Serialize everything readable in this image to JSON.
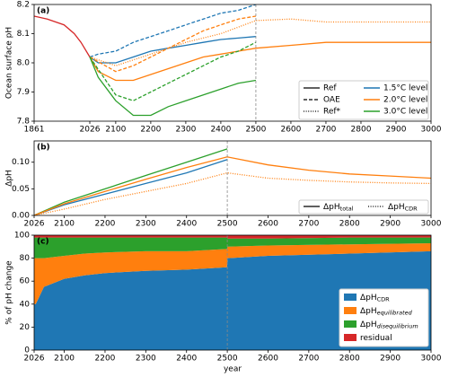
{
  "chart_data": [
    {
      "type": "line",
      "panel_label": "(a)",
      "ylabel": "Ocean surface pH",
      "xlim": [
        1861,
        3000
      ],
      "xticks": [
        1861,
        2026,
        2100,
        2200,
        2300,
        2400,
        2500,
        2600,
        2700,
        2800,
        2900,
        3000
      ],
      "ylim": [
        7.8,
        8.2
      ],
      "yticks": [
        7.8,
        7.9,
        {
          "value": 8,
          "label": "8.0"
        },
        8.1,
        8.2
      ],
      "series": [
        {
          "color": "#d62728",
          "dash": "solid",
          "x": [
            1861,
            1900,
            1950,
            1980,
            2000,
            2026
          ],
          "values": [
            8.16,
            8.15,
            8.13,
            8.1,
            8.07,
            8.02
          ]
        },
        {
          "color": "#1f77b4",
          "dash": "solid",
          "x": [
            2026,
            2050,
            2100,
            2150,
            2200,
            2250,
            2300,
            2350,
            2400,
            2450,
            2500
          ],
          "values": [
            8.02,
            8.0,
            8.0,
            8.02,
            8.04,
            8.05,
            8.06,
            8.07,
            8.08,
            8.085,
            8.09
          ]
        },
        {
          "color": "#1f77b4",
          "dash": "dashed",
          "x": [
            2026,
            2050,
            2100,
            2150,
            2200,
            2250,
            2300,
            2350,
            2400,
            2450,
            2500
          ],
          "values": [
            8.02,
            8.03,
            8.04,
            8.07,
            8.09,
            8.11,
            8.13,
            8.15,
            8.17,
            8.18,
            8.2
          ]
        },
        {
          "color": "#ff7f0e",
          "dash": "solid",
          "x": [
            2026,
            2050,
            2100,
            2150,
            2200,
            2250,
            2300,
            2350,
            2400,
            2450,
            2500,
            2600,
            2700,
            2800,
            2900,
            3000
          ],
          "values": [
            8.02,
            7.97,
            7.94,
            7.94,
            7.96,
            7.98,
            8.0,
            8.02,
            8.03,
            8.04,
            8.05,
            8.06,
            8.07,
            8.07,
            8.07,
            8.07
          ]
        },
        {
          "color": "#ff7f0e",
          "dash": "dashed",
          "x": [
            2026,
            2100,
            2150,
            2200,
            2250,
            2300,
            2350,
            2400,
            2450,
            2500
          ],
          "values": [
            8.02,
            7.97,
            7.99,
            8.02,
            8.05,
            8.08,
            8.11,
            8.13,
            8.15,
            8.16
          ]
        },
        {
          "color": "#ff7f0e",
          "dash": "dotted",
          "x": [
            2026,
            2100,
            2200,
            2300,
            2400,
            2500,
            2600,
            2700,
            2800,
            2900,
            3000
          ],
          "values": [
            8.02,
            7.99,
            8.03,
            8.07,
            8.1,
            8.145,
            8.15,
            8.14,
            8.14,
            8.14,
            8.14
          ]
        },
        {
          "color": "#2ca02c",
          "dash": "solid",
          "x": [
            2026,
            2050,
            2100,
            2150,
            2200,
            2250,
            2300,
            2350,
            2400,
            2450,
            2500
          ],
          "values": [
            8.02,
            7.95,
            7.87,
            7.82,
            7.82,
            7.85,
            7.87,
            7.89,
            7.91,
            7.93,
            7.94
          ]
        },
        {
          "color": "#2ca02c",
          "dash": "dashed",
          "x": [
            2026,
            2100,
            2150,
            2200,
            2250,
            2300,
            2350,
            2400,
            2450,
            2500
          ],
          "values": [
            8.02,
            7.89,
            7.87,
            7.9,
            7.93,
            7.96,
            7.99,
            8.02,
            8.04,
            8.07
          ]
        }
      ],
      "legend_styles": [
        {
          "name": "Ref",
          "dash": "solid"
        },
        {
          "name": "OAE",
          "dash": "dashed"
        },
        {
          "name": "Ref*",
          "dash": "dotted"
        }
      ],
      "legend_levels": [
        {
          "name": "1.5°C level",
          "color": "#1f77b4"
        },
        {
          "name": "2.0°C level",
          "color": "#ff7f0e"
        },
        {
          "name": "3.0°C level",
          "color": "#2ca02c"
        }
      ]
    },
    {
      "type": "line",
      "panel_label": "(b)",
      "ylabel": "ΔpH",
      "xlim": [
        2026,
        3000
      ],
      "xticks": [
        2026,
        2100,
        2200,
        2300,
        2400,
        2500,
        2600,
        2700,
        2800,
        2900,
        3000
      ],
      "ylim": [
        0,
        0.14
      ],
      "yticks": [
        {
          "value": 0,
          "label": "0.00"
        },
        {
          "value": 0.05,
          "label": "0.05"
        },
        {
          "value": 0.1,
          "label": "0.10"
        }
      ],
      "series": [
        {
          "color": "#1f77b4",
          "dash": "solid",
          "x": [
            2026,
            2100,
            2200,
            2300,
            2400,
            2500
          ],
          "values": [
            0,
            0.02,
            0.04,
            0.06,
            0.08,
            0.105
          ]
        },
        {
          "color": "#2ca02c",
          "dash": "solid",
          "x": [
            2026,
            2100,
            2200,
            2300,
            2400,
            2500
          ],
          "values": [
            0,
            0.025,
            0.05,
            0.075,
            0.1,
            0.125
          ]
        },
        {
          "color": "#ff7f0e",
          "dash": "solid",
          "x": [
            2026,
            2100,
            2200,
            2300,
            2400,
            2500,
            2600,
            2700,
            2800,
            2900,
            3000
          ],
          "values": [
            0,
            0.022,
            0.045,
            0.068,
            0.09,
            0.11,
            0.095,
            0.085,
            0.078,
            0.074,
            0.07
          ]
        },
        {
          "color": "#ff7f0e",
          "dash": "dotted",
          "x": [
            2026,
            2100,
            2200,
            2300,
            2400,
            2500,
            2600,
            2700,
            2800,
            2900,
            3000
          ],
          "values": [
            0,
            0.012,
            0.03,
            0.045,
            0.06,
            0.08,
            0.07,
            0.066,
            0.063,
            0.061,
            0.06
          ]
        }
      ],
      "legend_styles": [
        {
          "name": "ΔpH",
          "sub": "total",
          "dash": "solid"
        },
        {
          "name": "ΔpH",
          "sub": "CDR",
          "dash": "dotted"
        }
      ]
    },
    {
      "type": "stacked_area",
      "panel_label": "(c)",
      "ylabel": "% of pH change",
      "xlabel": "year",
      "xlim": [
        2026,
        3000
      ],
      "xticks": [
        2026,
        2100,
        2200,
        2300,
        2400,
        2500,
        2600,
        2700,
        2800,
        2900,
        3000
      ],
      "ylim": [
        0,
        100
      ],
      "yticks": [
        0,
        20,
        40,
        60,
        80,
        100
      ],
      "x": [
        2030,
        2050,
        2100,
        2150,
        2200,
        2300,
        2400,
        2499,
        2501,
        2600,
        2800,
        3000
      ],
      "series": [
        {
          "name": "ΔpH",
          "sub": "CDR",
          "color": "#1f77b4",
          "values": [
            40,
            55,
            62,
            65,
            67,
            69,
            70,
            72,
            80,
            82,
            84,
            86
          ]
        },
        {
          "name": "ΔpH",
          "sub": "equilibrated",
          "color": "#ff7f0e",
          "values": [
            40,
            25,
            20,
            19,
            18,
            17,
            16,
            16,
            10,
            9,
            8,
            7
          ]
        },
        {
          "name": "ΔpH",
          "sub": "disequilibrium",
          "color": "#2ca02c",
          "values": [
            18,
            18,
            16,
            14,
            13,
            12,
            12,
            10,
            7,
            6,
            6,
            5
          ]
        },
        {
          "name": "residual",
          "color": "#d62728",
          "values": [
            2,
            2,
            2,
            2,
            2,
            2,
            2,
            2,
            3,
            3,
            2,
            2
          ]
        }
      ]
    }
  ]
}
